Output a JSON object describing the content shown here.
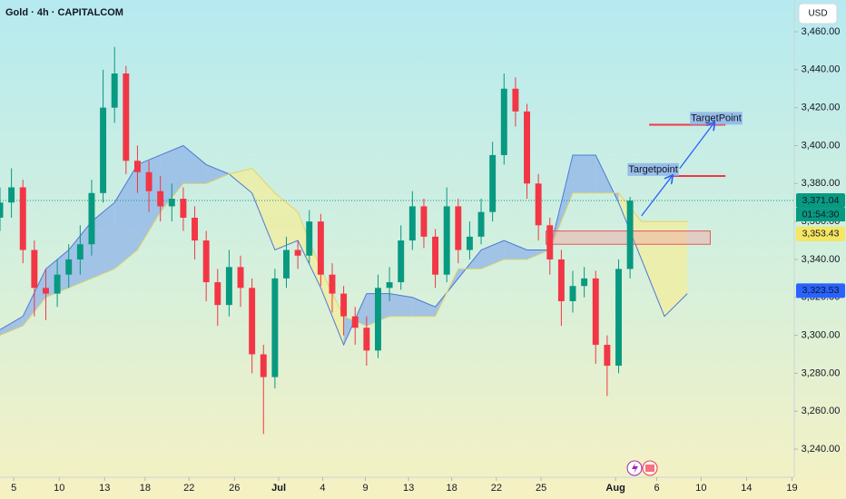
{
  "chart_data": {
    "type": "candlestick",
    "title": "Gold · 4h · CAPITALCOM",
    "currency": "USD",
    "x": [
      0,
      3,
      6,
      9,
      12,
      15,
      18,
      21,
      24,
      27,
      30,
      33,
      36,
      39,
      42,
      45,
      48,
      51,
      54,
      57,
      60,
      63,
      66,
      69,
      72,
      75,
      78,
      81,
      84,
      87,
      90,
      93,
      96,
      99,
      102,
      105,
      108,
      111,
      114,
      117,
      120,
      123,
      126,
      129,
      132,
      135,
      138,
      141,
      144,
      147,
      150,
      153,
      156,
      159,
      162,
      165
    ],
    "open": [
      3362,
      3370,
      3378,
      3345,
      3325,
      3322,
      3332,
      3340,
      3348,
      3375,
      3420,
      3438,
      3392,
      3386,
      3376,
      3368,
      3372,
      3362,
      3350,
      3328,
      3316,
      3336,
      3325,
      3290,
      3278,
      3330,
      3345,
      3342,
      3360,
      3332,
      3322,
      3310,
      3304,
      3292,
      3325,
      3328,
      3350,
      3368,
      3352,
      3332,
      3368,
      3345,
      3352,
      3365,
      3395,
      3430,
      3418,
      3380,
      3358,
      3340,
      3318,
      3326,
      3330,
      3295,
      3284,
      3335
    ],
    "high": [
      3378,
      3388,
      3382,
      3350,
      3335,
      3340,
      3348,
      3358,
      3382,
      3440,
      3452,
      3442,
      3400,
      3392,
      3384,
      3380,
      3378,
      3368,
      3355,
      3335,
      3345,
      3342,
      3330,
      3295,
      3335,
      3352,
      3350,
      3366,
      3364,
      3338,
      3326,
      3315,
      3310,
      3332,
      3336,
      3358,
      3376,
      3372,
      3356,
      3378,
      3372,
      3360,
      3372,
      3402,
      3438,
      3436,
      3422,
      3385,
      3362,
      3345,
      3334,
      3336,
      3334,
      3300,
      3340,
      3373
    ],
    "low": [
      3355,
      3362,
      3338,
      3310,
      3308,
      3315,
      3325,
      3332,
      3342,
      3370,
      3412,
      3385,
      3375,
      3365,
      3360,
      3360,
      3355,
      3340,
      3318,
      3305,
      3310,
      3315,
      3280,
      3248,
      3272,
      3325,
      3335,
      3338,
      3326,
      3312,
      3300,
      3295,
      3284,
      3288,
      3318,
      3324,
      3345,
      3346,
      3325,
      3328,
      3338,
      3340,
      3348,
      3360,
      3390,
      3410,
      3372,
      3350,
      3332,
      3305,
      3312,
      3320,
      3285,
      3268,
      3280,
      3330
    ],
    "close": [
      3370,
      3378,
      3345,
      3325,
      3322,
      3332,
      3340,
      3348,
      3375,
      3420,
      3438,
      3392,
      3386,
      3376,
      3368,
      3372,
      3362,
      3350,
      3328,
      3316,
      3336,
      3325,
      3290,
      3278,
      3330,
      3345,
      3342,
      3360,
      3332,
      3322,
      3310,
      3304,
      3292,
      3325,
      3328,
      3350,
      3368,
      3352,
      3332,
      3368,
      3345,
      3352,
      3365,
      3395,
      3430,
      3418,
      3380,
      3358,
      3340,
      3318,
      3326,
      3330,
      3295,
      3284,
      3335,
      3371
    ],
    "up_color": "#089981",
    "down_color": "#f23645",
    "cloud": {
      "x": [
        0,
        6,
        12,
        18,
        24,
        30,
        36,
        42,
        48,
        54,
        60,
        66,
        72,
        78,
        84,
        90,
        96,
        102,
        108,
        114,
        120,
        126,
        132,
        138,
        144,
        150,
        156,
        162,
        168,
        174,
        180
      ],
      "span_a": [
        3303,
        3310,
        3335,
        3345,
        3360,
        3370,
        3390,
        3395,
        3400,
        3390,
        3385,
        3375,
        3345,
        3350,
        3325,
        3295,
        3322,
        3322,
        3320,
        3315,
        3330,
        3345,
        3350,
        3345,
        3345,
        3395,
        3395,
        3370,
        3340,
        3310,
        3322
      ],
      "span_b": [
        3300,
        3305,
        3320,
        3325,
        3330,
        3335,
        3345,
        3365,
        3380,
        3380,
        3385,
        3388,
        3375,
        3365,
        3335,
        3310,
        3305,
        3310,
        3310,
        3310,
        3335,
        3335,
        3340,
        3340,
        3345,
        3375,
        3375,
        3375,
        3360,
        3360,
        3360
      ],
      "bull_color": "#8fb4e8",
      "bear_color": "#f3ee9c"
    },
    "zone": {
      "x": [
        143,
        186
      ],
      "y": [
        3348,
        3355
      ],
      "color": "#f2a5a5"
    },
    "annotations": [
      {
        "label": "Targetpoint",
        "x": [
          176,
          190
        ],
        "y": 3384
      },
      {
        "label": "TargetPoint",
        "x": [
          170,
          190
        ],
        "y": 3411
      }
    ],
    "arrows": [
      {
        "from": [
          168,
          3363
        ],
        "to": [
          176,
          3384
        ]
      },
      {
        "from": [
          178,
          3388
        ],
        "to": [
          187,
          3412
        ]
      }
    ],
    "last_price": {
      "value": 3371.04,
      "label": "3,371.04",
      "countdown": "01:54:30",
      "color": "#089981"
    },
    "price_tags": [
      {
        "value": 3353.43,
        "label": "3,353.43",
        "color": "#f5e663"
      },
      {
        "value": 3323.53,
        "label": "3,323.53",
        "color": "#2962ff"
      }
    ],
    "xlim": [
      0,
      208
    ],
    "ylim": [
      3230,
      3470
    ],
    "xticks": [
      {
        "value": 3.6,
        "label": "5"
      },
      {
        "value": 15.5,
        "label": "10"
      },
      {
        "value": 27.4,
        "label": "13"
      },
      {
        "value": 38,
        "label": "18"
      },
      {
        "value": 49.5,
        "label": "22"
      },
      {
        "value": 61.4,
        "label": "26"
      },
      {
        "value": 73,
        "label": "Jul"
      },
      {
        "value": 84.5,
        "label": "4"
      },
      {
        "value": 95.7,
        "label": "9"
      },
      {
        "value": 107,
        "label": "13"
      },
      {
        "value": 118.3,
        "label": "18"
      },
      {
        "value": 130,
        "label": "22"
      },
      {
        "value": 141.7,
        "label": "25"
      },
      {
        "value": 161.2,
        "label": "Aug"
      },
      {
        "value": 172,
        "label": "6"
      },
      {
        "value": 183.6,
        "label": "10"
      },
      {
        "value": 195.5,
        "label": "14"
      },
      {
        "value": 207.4,
        "label": "19"
      }
    ],
    "yticks": [
      {
        "value": 3240,
        "label": "3,240.00"
      },
      {
        "value": 3260,
        "label": "3,260.00"
      },
      {
        "value": 3280,
        "label": "3,280.00"
      },
      {
        "value": 3300,
        "label": "3,300.00"
      },
      {
        "value": 3320,
        "label": "3,320.00"
      },
      {
        "value": 3340,
        "label": "3,340.00"
      },
      {
        "value": 3360,
        "label": "3,360.00"
      },
      {
        "value": 3380,
        "label": "3,380.00"
      },
      {
        "value": 3400,
        "label": "3,400.00"
      },
      {
        "value": 3420,
        "label": "3,420.00"
      },
      {
        "value": 3440,
        "label": "3,440.00"
      },
      {
        "value": 3460,
        "label": "3,460.00"
      }
    ],
    "grid": false
  }
}
